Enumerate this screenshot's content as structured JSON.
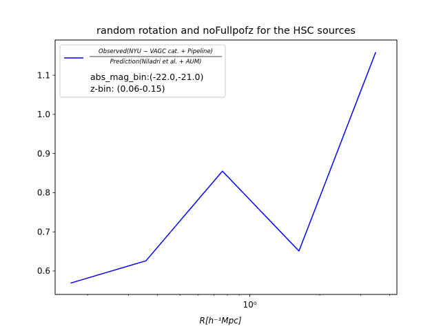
{
  "chart_data": {
    "type": "line",
    "title": "random rotation and noFullpofz for the HSC sources",
    "xlabel": "R[h⁻¹Mpc]",
    "ylabel": "",
    "xscale": "log",
    "xlim": [
      0.145,
      4.3
    ],
    "ylim": [
      0.54,
      1.19
    ],
    "yticks": [
      0.6,
      0.7,
      0.8,
      0.9,
      1.0,
      1.1
    ],
    "ytick_labels": [
      "0.6",
      "0.7",
      "0.8",
      "0.9",
      "1.0",
      "1.1"
    ],
    "xticks_major": [
      1.0
    ],
    "xtick_labels": [
      "10⁰"
    ],
    "xticks_minor": [
      0.2,
      0.3,
      0.4,
      0.5,
      0.6,
      0.7,
      0.8,
      0.9,
      2,
      3,
      4
    ],
    "grid": false,
    "legend_position": "upper-left",
    "series": [
      {
        "name": "Observed(NYU − VAGC cat. + Pipeline) / Prediction(Niladri et al. + AUM)",
        "legend_numerator": "Observed(NYU − VAGC cat. + Pipeline)",
        "legend_denominator": "Prediction(Niladri et al. + AUM)",
        "color": "#0000ff",
        "x": [
          0.169,
          0.357,
          0.762,
          1.628,
          3.486
        ],
        "y": [
          0.569,
          0.626,
          0.855,
          0.651,
          1.159
        ]
      }
    ],
    "annotations": [
      "abs_mag_bin:(-22.0,-21.0)",
      "z-bin: (0.06-0.15)"
    ]
  }
}
